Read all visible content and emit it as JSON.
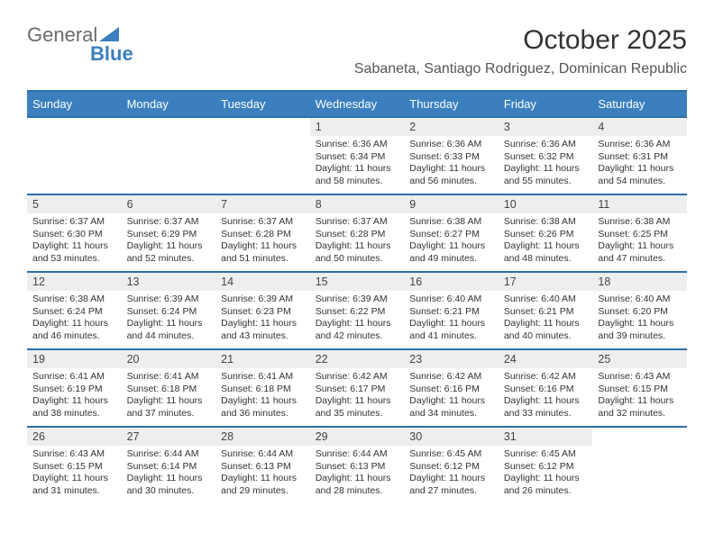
{
  "brand": {
    "name_gray": "General",
    "name_blue": "Blue"
  },
  "title": "October 2025",
  "location": "Sabaneta, Santiago Rodriguez, Dominican Republic",
  "colors": {
    "header_bg": "#3b7fbf",
    "header_border": "#2d6fa8",
    "daynum_bg": "#eceef0",
    "text": "#333333",
    "brand_blue": "#3b7fbf",
    "brand_gray": "#6a6a6a"
  },
  "day_headers": [
    "Sunday",
    "Monday",
    "Tuesday",
    "Wednesday",
    "Thursday",
    "Friday",
    "Saturday"
  ],
  "weeks": [
    [
      null,
      null,
      null,
      {
        "d": "1",
        "sr": "6:36 AM",
        "ss": "6:34 PM",
        "dl": "11 hours and 58 minutes."
      },
      {
        "d": "2",
        "sr": "6:36 AM",
        "ss": "6:33 PM",
        "dl": "11 hours and 56 minutes."
      },
      {
        "d": "3",
        "sr": "6:36 AM",
        "ss": "6:32 PM",
        "dl": "11 hours and 55 minutes."
      },
      {
        "d": "4",
        "sr": "6:36 AM",
        "ss": "6:31 PM",
        "dl": "11 hours and 54 minutes."
      }
    ],
    [
      {
        "d": "5",
        "sr": "6:37 AM",
        "ss": "6:30 PM",
        "dl": "11 hours and 53 minutes."
      },
      {
        "d": "6",
        "sr": "6:37 AM",
        "ss": "6:29 PM",
        "dl": "11 hours and 52 minutes."
      },
      {
        "d": "7",
        "sr": "6:37 AM",
        "ss": "6:28 PM",
        "dl": "11 hours and 51 minutes."
      },
      {
        "d": "8",
        "sr": "6:37 AM",
        "ss": "6:28 PM",
        "dl": "11 hours and 50 minutes."
      },
      {
        "d": "9",
        "sr": "6:38 AM",
        "ss": "6:27 PM",
        "dl": "11 hours and 49 minutes."
      },
      {
        "d": "10",
        "sr": "6:38 AM",
        "ss": "6:26 PM",
        "dl": "11 hours and 48 minutes."
      },
      {
        "d": "11",
        "sr": "6:38 AM",
        "ss": "6:25 PM",
        "dl": "11 hours and 47 minutes."
      }
    ],
    [
      {
        "d": "12",
        "sr": "6:38 AM",
        "ss": "6:24 PM",
        "dl": "11 hours and 46 minutes."
      },
      {
        "d": "13",
        "sr": "6:39 AM",
        "ss": "6:24 PM",
        "dl": "11 hours and 44 minutes."
      },
      {
        "d": "14",
        "sr": "6:39 AM",
        "ss": "6:23 PM",
        "dl": "11 hours and 43 minutes."
      },
      {
        "d": "15",
        "sr": "6:39 AM",
        "ss": "6:22 PM",
        "dl": "11 hours and 42 minutes."
      },
      {
        "d": "16",
        "sr": "6:40 AM",
        "ss": "6:21 PM",
        "dl": "11 hours and 41 minutes."
      },
      {
        "d": "17",
        "sr": "6:40 AM",
        "ss": "6:21 PM",
        "dl": "11 hours and 40 minutes."
      },
      {
        "d": "18",
        "sr": "6:40 AM",
        "ss": "6:20 PM",
        "dl": "11 hours and 39 minutes."
      }
    ],
    [
      {
        "d": "19",
        "sr": "6:41 AM",
        "ss": "6:19 PM",
        "dl": "11 hours and 38 minutes."
      },
      {
        "d": "20",
        "sr": "6:41 AM",
        "ss": "6:18 PM",
        "dl": "11 hours and 37 minutes."
      },
      {
        "d": "21",
        "sr": "6:41 AM",
        "ss": "6:18 PM",
        "dl": "11 hours and 36 minutes."
      },
      {
        "d": "22",
        "sr": "6:42 AM",
        "ss": "6:17 PM",
        "dl": "11 hours and 35 minutes."
      },
      {
        "d": "23",
        "sr": "6:42 AM",
        "ss": "6:16 PM",
        "dl": "11 hours and 34 minutes."
      },
      {
        "d": "24",
        "sr": "6:42 AM",
        "ss": "6:16 PM",
        "dl": "11 hours and 33 minutes."
      },
      {
        "d": "25",
        "sr": "6:43 AM",
        "ss": "6:15 PM",
        "dl": "11 hours and 32 minutes."
      }
    ],
    [
      {
        "d": "26",
        "sr": "6:43 AM",
        "ss": "6:15 PM",
        "dl": "11 hours and 31 minutes."
      },
      {
        "d": "27",
        "sr": "6:44 AM",
        "ss": "6:14 PM",
        "dl": "11 hours and 30 minutes."
      },
      {
        "d": "28",
        "sr": "6:44 AM",
        "ss": "6:13 PM",
        "dl": "11 hours and 29 minutes."
      },
      {
        "d": "29",
        "sr": "6:44 AM",
        "ss": "6:13 PM",
        "dl": "11 hours and 28 minutes."
      },
      {
        "d": "30",
        "sr": "6:45 AM",
        "ss": "6:12 PM",
        "dl": "11 hours and 27 minutes."
      },
      {
        "d": "31",
        "sr": "6:45 AM",
        "ss": "6:12 PM",
        "dl": "11 hours and 26 minutes."
      },
      null
    ]
  ],
  "labels": {
    "sunrise": "Sunrise:",
    "sunset": "Sunset:",
    "daylight": "Daylight:"
  }
}
